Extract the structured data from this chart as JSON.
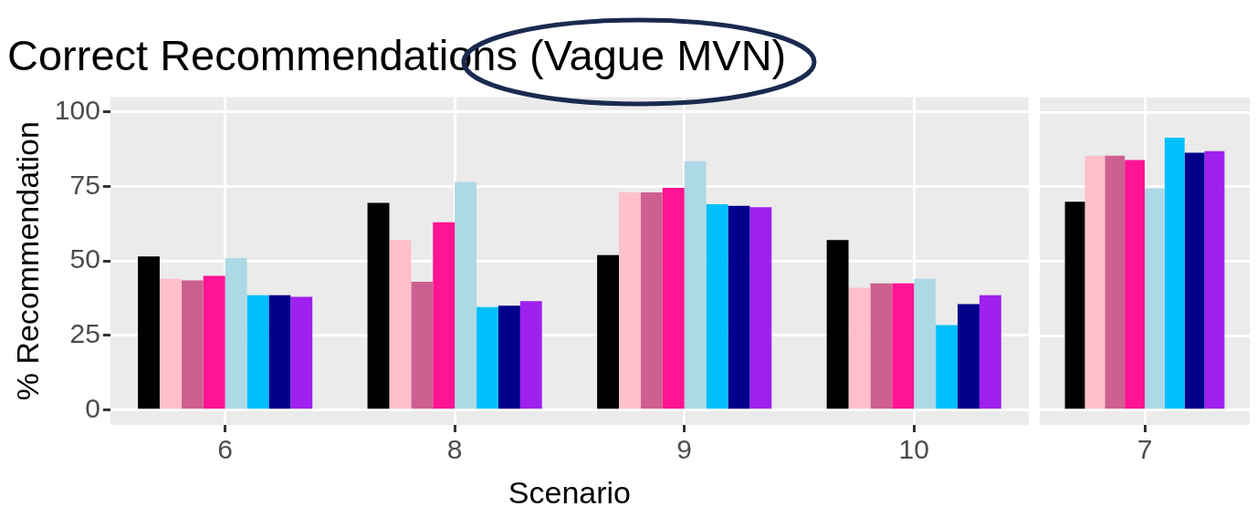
{
  "chart_data": [
    {
      "type": "bar",
      "title": "Correct Recommendations (Vague MVN)",
      "xlabel": "Scenario",
      "ylabel": "% Recommendation",
      "categories": [
        "6",
        "8",
        "9",
        "10"
      ],
      "ylim": [
        -5,
        105
      ],
      "yticks": [
        0,
        25,
        50,
        75,
        100
      ],
      "grid": true,
      "legend": false,
      "series": [
        {
          "color": "#000000",
          "values": [
            51.5,
            69.5,
            52,
            57
          ]
        },
        {
          "color": "#ffc0cb",
          "values": [
            44,
            57,
            73,
            41
          ]
        },
        {
          "color": "#cd6090",
          "values": [
            43.5,
            43,
            73,
            42.5
          ]
        },
        {
          "color": "#ff1493",
          "values": [
            45,
            63,
            74.5,
            42.5
          ]
        },
        {
          "color": "#add8e6",
          "values": [
            51,
            76.5,
            83.5,
            44
          ]
        },
        {
          "color": "#00bfff",
          "values": [
            38.5,
            34.5,
            69,
            28.5
          ]
        },
        {
          "color": "#00008b",
          "values": [
            38.5,
            35,
            68.5,
            35.5
          ]
        },
        {
          "color": "#a020f0",
          "values": [
            38,
            36.5,
            68,
            38.5
          ]
        }
      ]
    },
    {
      "type": "bar",
      "categories": [
        "7"
      ],
      "ylim": [
        -5,
        105
      ],
      "yticks": [
        0,
        25,
        50,
        75,
        100
      ],
      "grid": true,
      "legend": false,
      "tick_labels": "x",
      "series": [
        {
          "color": "#000000",
          "values": [
            70
          ]
        },
        {
          "color": "#ffc0cb",
          "values": [
            85.5
          ]
        },
        {
          "color": "#cd6090",
          "values": [
            85.5
          ]
        },
        {
          "color": "#ff1493",
          "values": [
            84
          ]
        },
        {
          "color": "#add8e6",
          "values": [
            74.5
          ]
        },
        {
          "color": "#00bfff",
          "values": [
            91.5
          ]
        },
        {
          "color": "#00008b",
          "values": [
            86.5
          ]
        },
        {
          "color": "#a020f0",
          "values": [
            87
          ]
        }
      ]
    }
  ]
}
